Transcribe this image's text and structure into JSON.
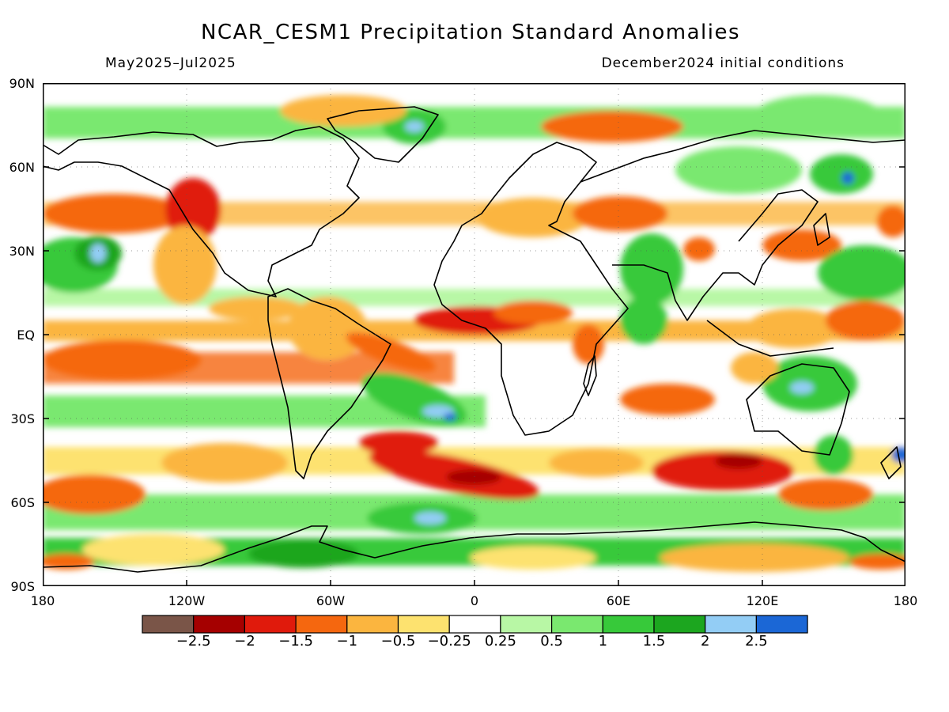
{
  "title": "NCAR_CESM1 Precipitation Standard Anomalies",
  "subtitle_left": "May2025–Jul2025",
  "subtitle_right": "December2024 initial conditions",
  "lat_labels": [
    "90N",
    "60N",
    "30N",
    "EQ",
    "30S",
    "60S",
    "90S"
  ],
  "lon_labels": [
    "180",
    "120W",
    "60W",
    "0",
    "60E",
    "120E",
    "180"
  ],
  "colorbar": {
    "colors": [
      "#7a5548",
      "#a50000",
      "#e01a0c",
      "#f5670f",
      "#fbb53f",
      "#fde26f",
      "#ffffff",
      "#b8f7a5",
      "#7ae86f",
      "#37c93a",
      "#1ca61f",
      "#93cdf5",
      "#1b67d6"
    ],
    "tick_labels": [
      "−2.5",
      "−2",
      "−1.5",
      "−1",
      "−0.5",
      "−0.25",
      "0.25",
      "0.5",
      "1",
      "1.5",
      "2",
      "2.5"
    ]
  }
}
